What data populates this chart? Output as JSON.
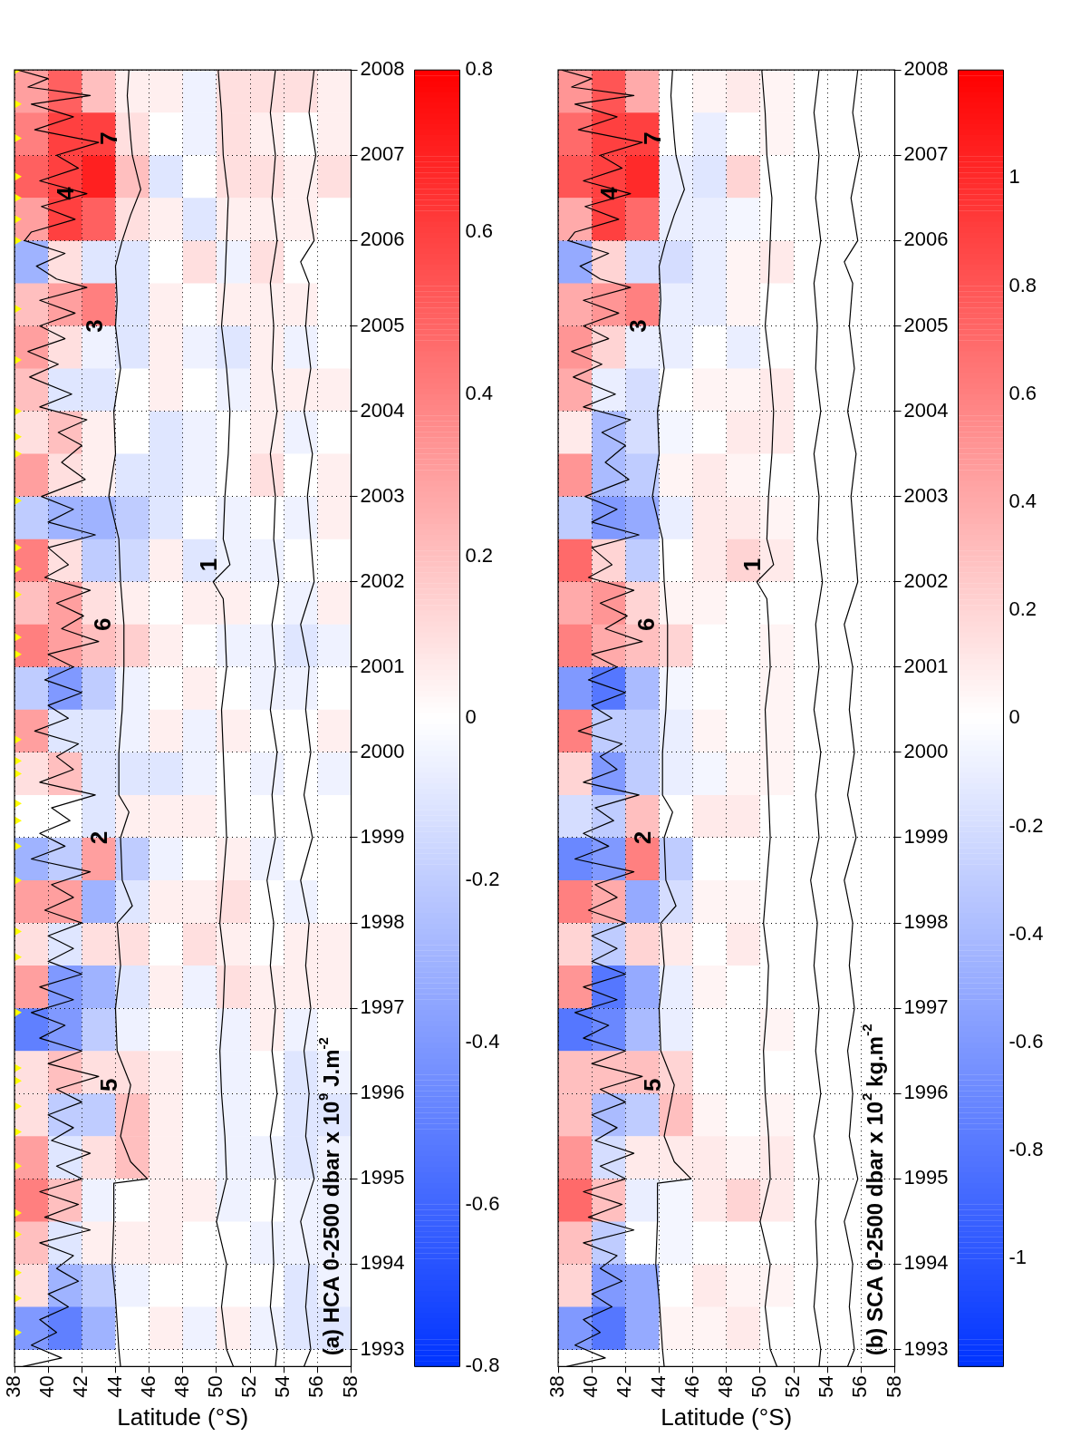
{
  "chart_data": [
    {
      "type": "heatmap",
      "xlabel": "Latitude (°S)",
      "xlim": [
        38,
        58
      ],
      "xticks": [
        38,
        40,
        42,
        44,
        46,
        48,
        50,
        52,
        54,
        56,
        58
      ],
      "ylim": [
        1992.8,
        2008
      ],
      "yticks": [
        1993,
        1994,
        1995,
        1996,
        1997,
        1998,
        1999,
        2000,
        2001,
        2002,
        2003,
        2004,
        2005,
        2006,
        2007,
        2008
      ],
      "grid": true,
      "legend": false,
      "clim": [
        -0.8,
        0.8
      ],
      "cticks": [
        -0.8,
        -0.6,
        -0.4,
        -0.2,
        0,
        0.2,
        0.4,
        0.6,
        0.8
      ],
      "x": [
        39,
        41,
        43,
        45,
        47,
        49,
        51,
        53,
        55,
        57
      ],
      "y": [
        2007.75,
        2007.25,
        2006.75,
        2006.25,
        2005.75,
        2005.25,
        2004.75,
        2004.25,
        2003.75,
        2003.25,
        2002.75,
        2002.25,
        2001.75,
        2001.25,
        2000.75,
        2000.25,
        1999.75,
        1999.25,
        1998.75,
        1998.25,
        1997.75,
        1997.25,
        1996.75,
        1996.25,
        1995.75,
        1995.25,
        1994.75,
        1994.25,
        1993.75,
        1993.25
      ],
      "cells": [
        [
          0.3,
          0.5,
          0.2,
          0.05,
          0.05,
          -0.05,
          0.1,
          0.1,
          0.1,
          0.05
        ],
        [
          0.4,
          0.6,
          0.6,
          0.1,
          0,
          -0.05,
          0.1,
          0.05,
          0,
          0.05
        ],
        [
          0.5,
          0.6,
          0.7,
          0.2,
          -0.1,
          0,
          0.1,
          0.1,
          0.05,
          0.1
        ],
        [
          0.3,
          0.6,
          0.5,
          0.1,
          0.05,
          -0.1,
          0.05,
          0.05,
          0.05,
          0
        ],
        [
          -0.3,
          0.1,
          -0.1,
          -0.1,
          0,
          0.1,
          -0.05,
          0.1,
          0,
          0
        ],
        [
          0.2,
          0.3,
          0.4,
          -0.1,
          0.05,
          0,
          0.05,
          0.05,
          0.05,
          0
        ],
        [
          0.3,
          0.1,
          -0.05,
          -0.1,
          0.05,
          -0.05,
          -0.1,
          0.05,
          -0.05,
          0
        ],
        [
          0.2,
          -0.1,
          -0.1,
          0,
          0.05,
          0,
          -0.05,
          0.05,
          0.05,
          0.05
        ],
        [
          0.1,
          0.2,
          0.05,
          0,
          -0.1,
          -0.05,
          0,
          0.05,
          -0.05,
          0
        ],
        [
          0.3,
          0.1,
          0.05,
          -0.1,
          -0.1,
          -0.05,
          0,
          0.1,
          0,
          0.05
        ],
        [
          -0.2,
          -0.3,
          -0.3,
          -0.2,
          -0.1,
          0,
          -0.05,
          0,
          -0.05,
          0.05
        ],
        [
          0.4,
          0.1,
          -0.2,
          -0.15,
          0.05,
          -0.1,
          -0.05,
          -0.05,
          0,
          0
        ],
        [
          0.2,
          0.3,
          0.1,
          0.05,
          0,
          0.05,
          0.05,
          0,
          -0.05,
          0.05
        ],
        [
          0.4,
          0.3,
          0.2,
          0.15,
          0.05,
          0,
          -0.05,
          -0.05,
          -0.1,
          -0.05
        ],
        [
          -0.2,
          -0.4,
          -0.2,
          -0.05,
          0,
          0.05,
          0,
          -0.05,
          -0.05,
          0
        ],
        [
          0.3,
          -0.1,
          -0.1,
          -0.05,
          0.05,
          -0.05,
          0.05,
          0,
          0,
          0.05
        ],
        [
          0.1,
          0.2,
          -0.1,
          -0.1,
          -0.1,
          -0.05,
          0,
          -0.05,
          0,
          -0.05
        ],
        [
          0,
          0,
          -0.1,
          0.05,
          0.05,
          0.05,
          0,
          0,
          0,
          0
        ],
        [
          -0.3,
          -0.2,
          0.3,
          -0.2,
          -0.05,
          0,
          0.05,
          -0.05,
          0,
          0
        ],
        [
          0.3,
          0.3,
          -0.3,
          -0.1,
          0.05,
          0.05,
          0.1,
          0,
          -0.05,
          0
        ],
        [
          0.1,
          -0.1,
          0.1,
          0.1,
          0,
          0.1,
          0.05,
          0,
          0.05,
          0.05
        ],
        [
          0.3,
          -0.4,
          -0.3,
          -0.1,
          0.05,
          -0.05,
          0.1,
          0.05,
          0.05,
          0.05
        ],
        [
          -0.5,
          -0.4,
          -0.2,
          -0.05,
          0,
          0,
          -0.05,
          0.05,
          -0.05,
          0
        ],
        [
          0.1,
          0.2,
          0.1,
          0.1,
          0.05,
          0,
          -0.05,
          0,
          -0.1,
          -0.05
        ],
        [
          0.1,
          -0.2,
          -0.2,
          0.2,
          0.05,
          0,
          -0.05,
          0,
          -0.1,
          -0.1
        ],
        [
          0.3,
          -0.1,
          0.1,
          0.2,
          0.05,
          0,
          -0.05,
          -0.05,
          -0.1,
          -0.05
        ],
        [
          0.4,
          0.2,
          -0.05,
          0,
          0.05,
          0.05,
          -0.05,
          0,
          -0.05,
          -0.05
        ],
        [
          0.2,
          -0.1,
          0.05,
          0.05,
          0.05,
          0,
          0,
          -0.05,
          -0.05,
          -0.05
        ],
        [
          0.1,
          -0.3,
          -0.2,
          -0.05,
          0,
          0,
          0,
          0,
          -0.1,
          -0.05
        ],
        [
          -0.4,
          -0.5,
          -0.3,
          0,
          0.05,
          -0.05,
          0.05,
          -0.05,
          -0.1,
          -0.1
        ]
      ],
      "series": [
        {
          "type": "line",
          "color": "#000000",
          "x": [
            38.2,
            40.0,
            38.8,
            42.5,
            39.0,
            41.5,
            39.2,
            43.0,
            40.5,
            41.8,
            39.5,
            42.3,
            39.6,
            41.6,
            39.0,
            38.6,
            41.0,
            39.3,
            40.5,
            42.3,
            39.5,
            41.6,
            39.5,
            41.0,
            38.8,
            40.6,
            38.9,
            41.4,
            39.5,
            42.3,
            40.6,
            42.0,
            40.8,
            42.2,
            39.6,
            41.5,
            40.0,
            42.8,
            40.0,
            41.2,
            39.8,
            42.5,
            40.5,
            42.1,
            40.8,
            43.0,
            40.0,
            41.5,
            39.8,
            42.0,
            40.0,
            41.2,
            39.2,
            41.8,
            40.5,
            41.5,
            39.5,
            42.8,
            40.2,
            41.3,
            39.5,
            41.0,
            39.0,
            42.5,
            40.2,
            41.5,
            39.8,
            42.0,
            40.0,
            41.5,
            40.0,
            42.0,
            39.5,
            41.5,
            39.0,
            41.0,
            39.5,
            42.0,
            40.0,
            43.0,
            40.5,
            42.0,
            40.0,
            41.5,
            40.2,
            42.5,
            40.5,
            42.0,
            39.5,
            41.8,
            39.8,
            42.5,
            39.5,
            41.5,
            40.5,
            41.8,
            40.0,
            41.2,
            39.5,
            40.5,
            39.0,
            40.8,
            38.5
          ],
          "values": [
            2008,
            2007.9,
            2007.8,
            2007.7,
            2007.6,
            2007.45,
            2007.3,
            2007.15,
            2007.0,
            2006.85,
            2006.7,
            2006.55,
            2006.4,
            2006.25,
            2006.1,
            2006.0,
            2005.85,
            2005.7,
            2005.55,
            2005.45,
            2005.3,
            2005.15,
            2005.0,
            2004.85,
            2004.7,
            2004.55,
            2004.4,
            2004.2,
            2004.05,
            2003.9,
            2003.75,
            2003.6,
            2003.4,
            2003.2,
            2003.0,
            2002.85,
            2002.7,
            2002.55,
            2002.4,
            2002.2,
            2002.05,
            2001.9,
            2001.75,
            2001.6,
            2001.45,
            2001.3,
            2001.15,
            2001.0,
            2000.85,
            2000.7,
            2000.55,
            2000.4,
            2000.25,
            2000.1,
            1999.95,
            1999.8,
            1999.65,
            1999.5,
            1999.35,
            1999.2,
            1999.05,
            1998.9,
            1998.75,
            1998.6,
            1998.45,
            1998.3,
            1998.15,
            1998.0,
            1997.85,
            1997.7,
            1997.55,
            1997.4,
            1997.25,
            1997.1,
            1996.95,
            1996.8,
            1996.65,
            1996.5,
            1996.35,
            1996.2,
            1996.05,
            1995.9,
            1995.75,
            1995.6,
            1995.45,
            1995.3,
            1995.15,
            1995.0,
            1994.85,
            1994.7,
            1994.55,
            1994.4,
            1994.25,
            1994.1,
            1993.95,
            1993.8,
            1993.65,
            1993.5,
            1993.35,
            1993.2,
            1993.05,
            1992.9,
            1992.8
          ]
        },
        {
          "type": "line",
          "color": "#000000",
          "x": [
            44.8,
            44.7,
            44.9,
            45.0,
            45.5,
            44.9,
            44.4,
            44.0,
            44.1,
            44.0,
            44.3,
            43.9,
            44.0,
            43.6,
            44.2,
            44.3,
            44.5,
            44.5,
            44.4,
            44.2,
            44.2,
            44.8,
            44.3,
            44.4,
            45.0,
            44.1,
            44.3,
            44.0,
            44.1,
            44.9,
            44.6,
            44.3,
            44.9,
            45.9,
            43.9,
            43.9,
            43.8,
            44.0,
            44.2,
            44.3
          ],
          "values": [
            2008,
            2007.7,
            2007.2,
            2007,
            2006.6,
            2006.3,
            2006,
            2005.7,
            2005.3,
            2005,
            2004.5,
            2004,
            2003.5,
            2003,
            2002.5,
            2002,
            2001.5,
            2001,
            2000.5,
            2000,
            1999.5,
            1999.3,
            1999,
            1998.5,
            1998.2,
            1998,
            1997.5,
            1997,
            1996.5,
            1996.1,
            1995.8,
            1995.5,
            1995.2,
            1995.0,
            1994.95,
            1994.5,
            1994,
            1993.6,
            1993,
            1992.8
          ]
        },
        {
          "type": "line",
          "color": "#000000",
          "x": [
            50.1,
            50.3,
            50.4,
            50.7,
            50.6,
            50.5,
            50.3,
            50.6,
            50.8,
            50.7,
            50.5,
            50.4,
            50.8,
            49.8,
            50.4,
            50.5,
            50.6,
            50.3,
            50.4,
            50.5,
            50.6,
            50.4,
            50.2,
            50.5,
            50.4,
            50.2,
            50.3,
            50.5,
            50.6,
            50.0,
            50.6,
            50.3,
            50.6,
            51.0
          ],
          "values": [
            2008,
            2007.5,
            2007,
            2006.5,
            2006,
            2005.5,
            2005,
            2004.5,
            2004,
            2003.5,
            2003,
            2002.5,
            2002.2,
            2002,
            2001.8,
            2001.5,
            2001,
            2000.5,
            2000,
            1999.5,
            1999,
            1998.5,
            1998,
            1997.5,
            1997,
            1996.5,
            1996,
            1995.5,
            1995,
            1994.5,
            1994,
            1993.5,
            1993,
            1992.8
          ]
        },
        {
          "type": "line",
          "color": "#000000",
          "x": [
            53.5,
            53.2,
            53.5,
            53.3,
            53.6,
            53.2,
            53.4,
            53.3,
            53.6,
            53.2,
            53.5,
            53.4,
            53.7,
            53.3,
            53.5,
            53.2,
            53.6,
            53.3,
            53.5,
            53.0,
            53.4,
            53.2,
            53.5,
            53.3,
            53.6,
            53.2,
            53.5,
            53.3,
            53.4,
            53.2,
            53.6,
            53.5
          ],
          "values": [
            2008,
            2007.5,
            2007,
            2006.5,
            2006,
            2005.5,
            2005,
            2004.5,
            2004,
            2003.5,
            2003,
            2002.5,
            2002,
            2001.5,
            2001,
            2000.5,
            2000,
            1999.5,
            1999,
            1998.5,
            1998,
            1997.5,
            1997,
            1996.5,
            1996,
            1995.5,
            1995,
            1994.5,
            1994,
            1993.5,
            1993,
            1992.8
          ]
        },
        {
          "type": "line",
          "color": "#000000",
          "x": [
            55.8,
            55.5,
            55.9,
            55.4,
            55.8,
            55.0,
            55.5,
            55.3,
            55.6,
            55.2,
            55.7,
            55.4,
            55.6,
            55.8,
            55.0,
            55.5,
            55.3,
            55.6,
            55.2,
            55.7,
            55.0,
            55.5,
            55.3,
            55.6,
            55.2,
            55.5,
            55.3,
            55.8,
            55.0,
            55.5,
            55.3,
            55.6,
            55.2
          ],
          "values": [
            2008,
            2007.5,
            2007,
            2006.5,
            2006,
            2005.75,
            2005.5,
            2005,
            2004.5,
            2004,
            2003.5,
            2003,
            2002.5,
            2002,
            2001.5,
            2001,
            2000.5,
            2000,
            1999.5,
            1999,
            1998.5,
            1998,
            1997.5,
            1997,
            1996.5,
            1996,
            1995.5,
            1995,
            1994.5,
            1994,
            1993.5,
            1993,
            1992.8
          ]
        },
        {
          "type": "scatter",
          "color": "#ffff00",
          "marker": "triangle",
          "x": [
            38,
            38,
            38,
            38,
            38,
            38,
            38,
            38,
            38,
            38,
            38,
            38,
            38,
            38,
            38,
            38,
            38,
            38,
            38,
            38,
            38,
            38,
            38,
            38,
            38,
            38,
            38,
            38,
            38,
            38,
            38,
            38,
            38,
            38,
            38,
            38,
            38,
            38
          ],
          "values": [
            2008.0,
            2007.6,
            2007.2,
            2006.75,
            2006.5,
            2006.25,
            2006.0,
            2005.2,
            2004.6,
            2004.0,
            2003.7,
            2003.5,
            2002.95,
            2002.4,
            2002.15,
            2001.85,
            2001.35,
            2001.15,
            2000.15,
            1999.9,
            1999.75,
            1999.4,
            1999.2,
            1998.9,
            1998.5,
            1997.9,
            1997.6,
            1996.95,
            1996.3,
            1996.15,
            1995.85,
            1995.55,
            1995.15,
            1994.6,
            1994.35,
            1993.9,
            1993.6,
            1993.2
          ]
        }
      ],
      "annotations": [
        {
          "text": "1",
          "x": 50.8,
          "y": 2002.2
        },
        {
          "text": "2",
          "x": 44.3,
          "y": 1999
        },
        {
          "text": "3",
          "x": 44.0,
          "y": 2005
        },
        {
          "text": "4",
          "x": 42.3,
          "y": 2006.55
        },
        {
          "text": "5",
          "x": 44.9,
          "y": 1996.1
        },
        {
          "text": "6",
          "x": 44.5,
          "y": 2001.5
        },
        {
          "text": "7",
          "x": 44.9,
          "y": 2007.2
        },
        "(a) HCA 0-2500 dbar x 10$^{9}$ J.m$^{-2}$"
      ]
    },
    {
      "type": "heatmap",
      "xlabel": "Latitude (°S)",
      "xlim": [
        38,
        58
      ],
      "xticks": [
        38,
        40,
        42,
        44,
        46,
        48,
        50,
        52,
        54,
        56,
        58
      ],
      "ylim": [
        1992.8,
        2008
      ],
      "yticks": [
        1993,
        1994,
        1995,
        1996,
        1997,
        1998,
        1999,
        2000,
        2001,
        2002,
        2003,
        2004,
        2005,
        2006,
        2007,
        2008
      ],
      "grid": true,
      "legend": false,
      "clim": [
        -1.2,
        1.2
      ],
      "cticks": [
        -1,
        -0.8,
        -0.6,
        -0.4,
        -0.2,
        0,
        0.2,
        0.4,
        0.6,
        0.8,
        1
      ],
      "x": [
        39,
        41,
        43,
        45,
        47,
        49,
        51,
        53,
        55,
        57
      ],
      "y": [
        2007.75,
        2007.25,
        2006.75,
        2006.25,
        2005.75,
        2005.25,
        2004.75,
        2004.25,
        2003.75,
        2003.25,
        2002.75,
        2002.25,
        2001.75,
        2001.25,
        2000.75,
        2000.25,
        1999.75,
        1999.25,
        1998.75,
        1998.25,
        1997.75,
        1997.25,
        1996.75,
        1996.25,
        1995.75,
        1995.25,
        1994.75,
        1994.25,
        1993.75,
        1993.25
      ],
      "cells": [
        [
          0.5,
          0.8,
          0.4,
          0,
          0.05,
          0.1,
          0.05,
          0,
          0,
          0
        ],
        [
          0.7,
          0.9,
          0.9,
          0,
          -0.1,
          0,
          0.05,
          0,
          0,
          0
        ],
        [
          0.8,
          0.9,
          1.0,
          -0.1,
          -0.15,
          0.2,
          0,
          0,
          0,
          0
        ],
        [
          0.4,
          0.9,
          0.7,
          -0.1,
          -0.1,
          -0.05,
          0,
          0,
          0,
          0
        ],
        [
          -0.5,
          0.2,
          -0.2,
          -0.2,
          -0.1,
          0.05,
          0.1,
          0,
          0,
          0
        ],
        [
          0.4,
          0.5,
          0.6,
          -0.1,
          -0.1,
          0.05,
          0,
          0,
          0,
          0
        ],
        [
          0.5,
          0.2,
          -0.1,
          -0.1,
          0,
          -0.1,
          0,
          0,
          0,
          0
        ],
        [
          0.4,
          -0.1,
          -0.2,
          0,
          0.05,
          0.05,
          0.1,
          0,
          0,
          0
        ],
        [
          0.1,
          -0.4,
          -0.2,
          -0.05,
          0,
          0.1,
          0.1,
          0,
          0,
          0
        ],
        [
          0.5,
          -0.4,
          -0.3,
          0.05,
          0.1,
          0.05,
          0,
          0,
          0,
          0
        ],
        [
          -0.3,
          -0.6,
          -0.5,
          -0.1,
          0.1,
          0.1,
          0.05,
          0,
          0,
          0
        ],
        [
          0.7,
          0.2,
          -0.3,
          0,
          0.1,
          0.2,
          0.1,
          0,
          0,
          0
        ],
        [
          0.4,
          0.5,
          0.2,
          0.05,
          0.05,
          0,
          0,
          0,
          0,
          0
        ],
        [
          0.6,
          0.4,
          0.3,
          0.2,
          0,
          0,
          0.05,
          0,
          0,
          0
        ],
        [
          -0.6,
          -0.8,
          -0.4,
          -0.05,
          0,
          0,
          0.05,
          0,
          0,
          0
        ],
        [
          0.6,
          -0.3,
          -0.3,
          -0.1,
          0.05,
          0,
          0.05,
          0,
          0,
          0
        ],
        [
          0.2,
          -0.6,
          -0.3,
          -0.1,
          -0.05,
          0.05,
          0.05,
          0,
          0,
          0
        ],
        [
          -0.2,
          -0.3,
          0.3,
          0,
          0.1,
          0.1,
          0,
          0,
          0,
          0
        ],
        [
          -0.7,
          -0.6,
          0.6,
          -0.3,
          0,
          0,
          0,
          0,
          0,
          0
        ],
        [
          0.6,
          0.4,
          -0.5,
          -0.2,
          0.05,
          0.05,
          0,
          0,
          0,
          0
        ],
        [
          0.2,
          -0.3,
          0.2,
          0.1,
          0,
          0.1,
          0,
          0,
          0,
          0
        ],
        [
          0.5,
          -0.8,
          -0.5,
          -0.1,
          0.05,
          0,
          0,
          0,
          0,
          0
        ],
        [
          -0.8,
          -0.7,
          -0.4,
          -0.1,
          0,
          0,
          0.05,
          0,
          0,
          0
        ],
        [
          0.3,
          0.3,
          0.3,
          0.2,
          0,
          0,
          0,
          0,
          0,
          0
        ],
        [
          0.3,
          -0.4,
          -0.3,
          0.3,
          0.05,
          0,
          0.05,
          0,
          0,
          0
        ],
        [
          0.5,
          -0.2,
          0.1,
          0.1,
          0.1,
          0.05,
          0.1,
          0,
          0,
          0
        ],
        [
          0.7,
          0.3,
          -0.1,
          -0.05,
          0.1,
          0.2,
          0.1,
          0,
          0,
          0
        ],
        [
          0.3,
          -0.3,
          0,
          -0.05,
          0,
          0,
          0,
          0,
          0,
          0
        ],
        [
          0.2,
          -0.6,
          -0.5,
          0,
          0.1,
          0.05,
          0.05,
          0,
          0,
          0
        ],
        [
          -0.6,
          -0.8,
          -0.5,
          0.05,
          0.05,
          0.1,
          0,
          0,
          0,
          0
        ]
      ],
      "series": [
        {
          "type": "line",
          "color": "#000000",
          "x": [
            38.2,
            40.0,
            38.8,
            42.5,
            39.0,
            41.5,
            39.2,
            43.0,
            40.5,
            41.8,
            39.5,
            42.3,
            39.6,
            41.6,
            39.0,
            38.6,
            41.0,
            39.3,
            40.5,
            42.3,
            39.5,
            41.6,
            39.5,
            41.0,
            38.8,
            40.6,
            38.9,
            41.4,
            39.5,
            42.3,
            40.6,
            42.0,
            40.8,
            42.2,
            39.6,
            41.5,
            40.0,
            42.8,
            40.0,
            41.2,
            39.8,
            42.5,
            40.5,
            42.1,
            40.8,
            43.0,
            40.0,
            41.5,
            39.8,
            42.0,
            40.0,
            41.2,
            39.2,
            41.8,
            40.5,
            41.5,
            39.5,
            42.8,
            40.2,
            41.3,
            39.5,
            41.0,
            39.0,
            42.5,
            40.2,
            41.5,
            39.8,
            42.0,
            40.0,
            41.5,
            40.0,
            42.0,
            39.5,
            41.5,
            39.0,
            41.0,
            39.5,
            42.0,
            40.0,
            43.0,
            40.5,
            42.0,
            40.0,
            41.5,
            40.2,
            42.5,
            40.5,
            42.0,
            39.5,
            41.8,
            39.8,
            42.5,
            39.5,
            41.5,
            40.5,
            41.8,
            40.0,
            41.2,
            39.5,
            40.5,
            39.0,
            40.8,
            38.5
          ],
          "values": [
            2008,
            2007.9,
            2007.8,
            2007.7,
            2007.6,
            2007.45,
            2007.3,
            2007.15,
            2007.0,
            2006.85,
            2006.7,
            2006.55,
            2006.4,
            2006.25,
            2006.1,
            2006.0,
            2005.85,
            2005.7,
            2005.55,
            2005.45,
            2005.3,
            2005.15,
            2005.0,
            2004.85,
            2004.7,
            2004.55,
            2004.4,
            2004.2,
            2004.05,
            2003.9,
            2003.75,
            2003.6,
            2003.4,
            2003.2,
            2003.0,
            2002.85,
            2002.7,
            2002.55,
            2002.4,
            2002.2,
            2002.05,
            2001.9,
            2001.75,
            2001.6,
            2001.45,
            2001.3,
            2001.15,
            2001.0,
            2000.85,
            2000.7,
            2000.55,
            2000.4,
            2000.25,
            2000.1,
            1999.95,
            1999.8,
            1999.65,
            1999.5,
            1999.35,
            1999.2,
            1999.05,
            1998.9,
            1998.75,
            1998.6,
            1998.45,
            1998.3,
            1998.15,
            1998.0,
            1997.85,
            1997.7,
            1997.55,
            1997.4,
            1997.25,
            1997.1,
            1996.95,
            1996.8,
            1996.65,
            1996.5,
            1996.35,
            1996.2,
            1996.05,
            1995.9,
            1995.75,
            1995.6,
            1995.45,
            1995.3,
            1995.15,
            1995.0,
            1994.85,
            1994.7,
            1994.55,
            1994.4,
            1994.25,
            1994.1,
            1993.95,
            1993.8,
            1993.65,
            1993.5,
            1993.35,
            1993.2,
            1993.05,
            1992.9,
            1992.8
          ]
        },
        {
          "type": "line",
          "color": "#000000",
          "x": [
            44.8,
            44.7,
            44.9,
            45.0,
            45.5,
            44.9,
            44.4,
            44.0,
            44.1,
            44.0,
            44.3,
            43.9,
            44.0,
            43.6,
            44.2,
            44.3,
            44.5,
            44.5,
            44.4,
            44.2,
            44.2,
            44.8,
            44.3,
            44.4,
            45.0,
            44.1,
            44.3,
            44.0,
            44.1,
            44.9,
            44.6,
            44.3,
            44.9,
            45.9,
            43.9,
            43.9,
            43.8,
            44.0,
            44.2,
            44.3
          ],
          "values": [
            2008,
            2007.7,
            2007.2,
            2007,
            2006.6,
            2006.3,
            2006,
            2005.7,
            2005.3,
            2005,
            2004.5,
            2004,
            2003.5,
            2003,
            2002.5,
            2002,
            2001.5,
            2001,
            2000.5,
            2000,
            1999.5,
            1999.3,
            1999,
            1998.5,
            1998.2,
            1998,
            1997.5,
            1997,
            1996.5,
            1996.1,
            1995.8,
            1995.5,
            1995.2,
            1995.0,
            1994.95,
            1994.5,
            1994,
            1993.6,
            1993,
            1992.8
          ]
        },
        {
          "type": "line",
          "color": "#000000",
          "x": [
            50.1,
            50.3,
            50.4,
            50.7,
            50.6,
            50.5,
            50.3,
            50.6,
            50.8,
            50.7,
            50.5,
            50.4,
            50.8,
            49.8,
            50.4,
            50.5,
            50.6,
            50.3,
            50.4,
            50.5,
            50.6,
            50.4,
            50.2,
            50.5,
            50.4,
            50.2,
            50.3,
            50.5,
            50.6,
            50.0,
            50.6,
            50.3,
            50.6,
            51.0
          ],
          "values": [
            2008,
            2007.5,
            2007,
            2006.5,
            2006,
            2005.5,
            2005,
            2004.5,
            2004,
            2003.5,
            2003,
            2002.5,
            2002.2,
            2002,
            2001.8,
            2001.5,
            2001,
            2000.5,
            2000,
            1999.5,
            1999,
            1998.5,
            1998,
            1997.5,
            1997,
            1996.5,
            1996,
            1995.5,
            1995,
            1994.5,
            1994,
            1993.5,
            1993,
            1992.8
          ]
        },
        {
          "type": "line",
          "color": "#000000",
          "x": [
            53.5,
            53.2,
            53.5,
            53.3,
            53.6,
            53.2,
            53.4,
            53.3,
            53.6,
            53.2,
            53.5,
            53.4,
            53.7,
            53.3,
            53.5,
            53.2,
            53.6,
            53.3,
            53.5,
            53.0,
            53.4,
            53.2,
            53.5,
            53.3,
            53.6,
            53.2,
            53.5,
            53.3,
            53.4,
            53.2,
            53.6,
            53.5
          ],
          "values": [
            2008,
            2007.5,
            2007,
            2006.5,
            2006,
            2005.5,
            2005,
            2004.5,
            2004,
            2003.5,
            2003,
            2002.5,
            2002,
            2001.5,
            2001,
            2000.5,
            2000,
            1999.5,
            1999,
            1998.5,
            1998,
            1997.5,
            1997,
            1996.5,
            1996,
            1995.5,
            1995,
            1994.5,
            1994,
            1993.5,
            1993,
            1992.8
          ]
        },
        {
          "type": "line",
          "color": "#000000",
          "x": [
            55.8,
            55.5,
            55.9,
            55.4,
            55.8,
            55.0,
            55.5,
            55.3,
            55.6,
            55.2,
            55.7,
            55.4,
            55.6,
            55.8,
            55.0,
            55.5,
            55.3,
            55.6,
            55.2,
            55.7,
            55.0,
            55.5,
            55.3,
            55.6,
            55.2,
            55.5,
            55.3,
            55.8,
            55.0,
            55.5,
            55.3,
            55.6,
            55.2
          ],
          "values": [
            2008,
            2007.5,
            2007,
            2006.5,
            2006,
            2005.75,
            2005.5,
            2005,
            2004.5,
            2004,
            2003.5,
            2003,
            2002.5,
            2002,
            2001.5,
            2001,
            2000.5,
            2000,
            1999.5,
            1999,
            1998.5,
            1998,
            1997.5,
            1997,
            1996.5,
            1996,
            1995.5,
            1995,
            1994.5,
            1994,
            1993.5,
            1993,
            1992.8
          ]
        }
      ],
      "annotations": [
        {
          "text": "1",
          "x": 50.8,
          "y": 2002.2
        },
        {
          "text": "2",
          "x": 44.3,
          "y": 1999
        },
        {
          "text": "3",
          "x": 44.0,
          "y": 2005
        },
        {
          "text": "4",
          "x": 42.3,
          "y": 2006.55
        },
        {
          "text": "5",
          "x": 44.9,
          "y": 1996.1
        },
        {
          "text": "6",
          "x": 44.5,
          "y": 2001.5
        },
        {
          "text": "7",
          "x": 44.9,
          "y": 2007.2
        },
        "(b) SCA 0-2500 dbar x 10$^{2}$ kg.m$^{-2}$"
      ]
    }
  ]
}
